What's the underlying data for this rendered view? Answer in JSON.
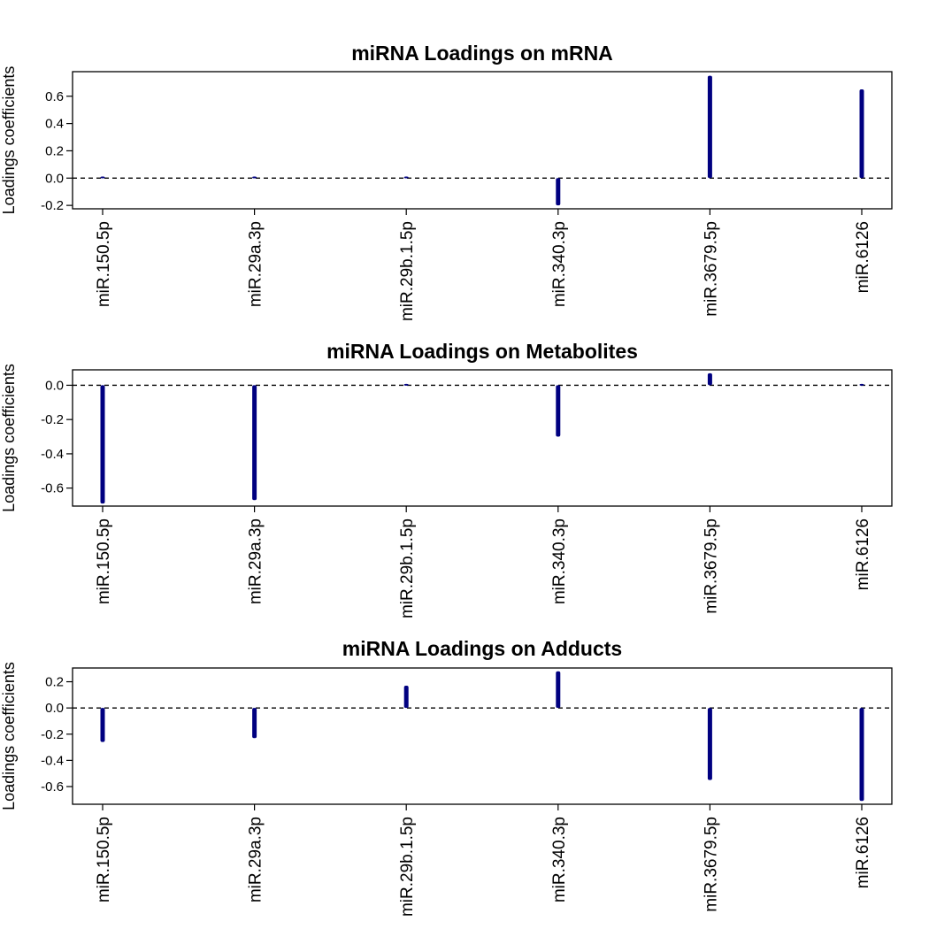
{
  "chart_data": [
    {
      "type": "bar",
      "title": "miRNA Loadings on mRNA",
      "ylabel": "Loadings coefficients",
      "xlabel": "",
      "categories": [
        "miR.150.5p",
        "miR.29a.3p",
        "miR.29b.1.5p",
        "miR.340.3p",
        "miR.3679.5p",
        "miR.6126"
      ],
      "values": [
        0.005,
        0.005,
        0.005,
        -0.2,
        0.75,
        0.65
      ],
      "ylim": [
        -0.225,
        0.78
      ],
      "yticks": [
        -0.2,
        0.0,
        0.2,
        0.4,
        0.6
      ],
      "ytick_labels": [
        "-0.2",
        "0.0",
        "0.2",
        "0.4",
        "0.6"
      ],
      "reference_line": 0,
      "color": "#000080"
    },
    {
      "type": "bar",
      "title": "miRNA Loadings on Metabolites",
      "ylabel": "Loadings coefficients",
      "xlabel": "",
      "categories": [
        "miR.150.5p",
        "miR.29a.3p",
        "miR.29b.1.5p",
        "miR.340.3p",
        "miR.3679.5p",
        "miR.6126"
      ],
      "values": [
        -0.69,
        -0.67,
        0.003,
        -0.3,
        0.07,
        0.003
      ],
      "ylim": [
        -0.705,
        0.09
      ],
      "yticks": [
        -0.6,
        -0.4,
        -0.2,
        0.0
      ],
      "ytick_labels": [
        "-0.6",
        "-0.4",
        "-0.2",
        "0.0"
      ],
      "reference_line": 0,
      "color": "#000080"
    },
    {
      "type": "bar",
      "title": "miRNA Loadings on Adducts",
      "ylabel": "Loadings coefficients",
      "xlabel": "",
      "categories": [
        "miR.150.5p",
        "miR.29a.3p",
        "miR.29b.1.5p",
        "miR.340.3p",
        "miR.3679.5p",
        "miR.6126"
      ],
      "values": [
        -0.26,
        -0.23,
        0.17,
        0.28,
        -0.55,
        -0.71
      ],
      "ylim": [
        -0.735,
        0.305
      ],
      "yticks": [
        -0.6,
        -0.4,
        -0.2,
        0.0,
        0.2
      ],
      "ytick_labels": [
        "-0.6",
        "-0.4",
        "-0.2",
        "0.0",
        "0.2"
      ],
      "reference_line": 0,
      "color": "#000080"
    }
  ]
}
